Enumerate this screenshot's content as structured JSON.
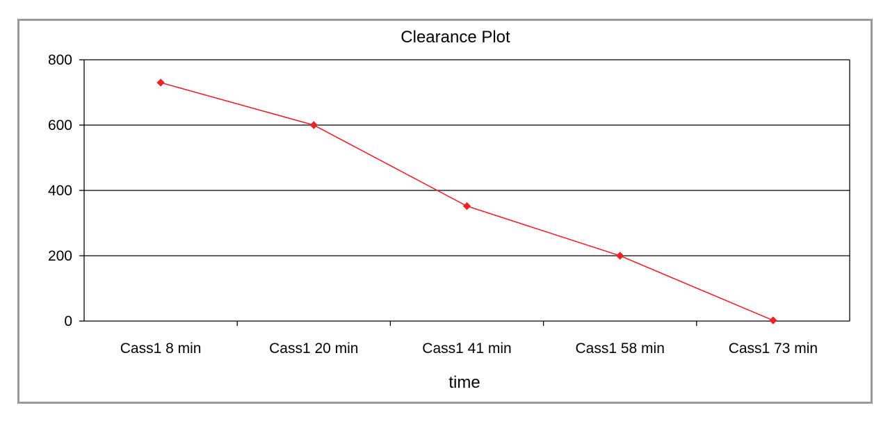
{
  "chart_data": {
    "type": "line",
    "title": "Clearance Plot",
    "xlabel": "time",
    "ylabel": "",
    "categories": [
      "Cass1 8 min",
      "Cass1 20 min",
      "Cass1 41 min",
      "Cass1 58 min",
      "Cass1 73 min"
    ],
    "series": [
      {
        "values": [
          730,
          600,
          352,
          200,
          2
        ],
        "color": "#e8252a",
        "marker": "diamond"
      }
    ],
    "ylim": [
      0,
      800
    ],
    "yticks": [
      0,
      200,
      400,
      600,
      800
    ],
    "grid": "horizontal",
    "legend": "none",
    "colors": {
      "gridline": "#000000",
      "frame_border": "#999999"
    }
  }
}
